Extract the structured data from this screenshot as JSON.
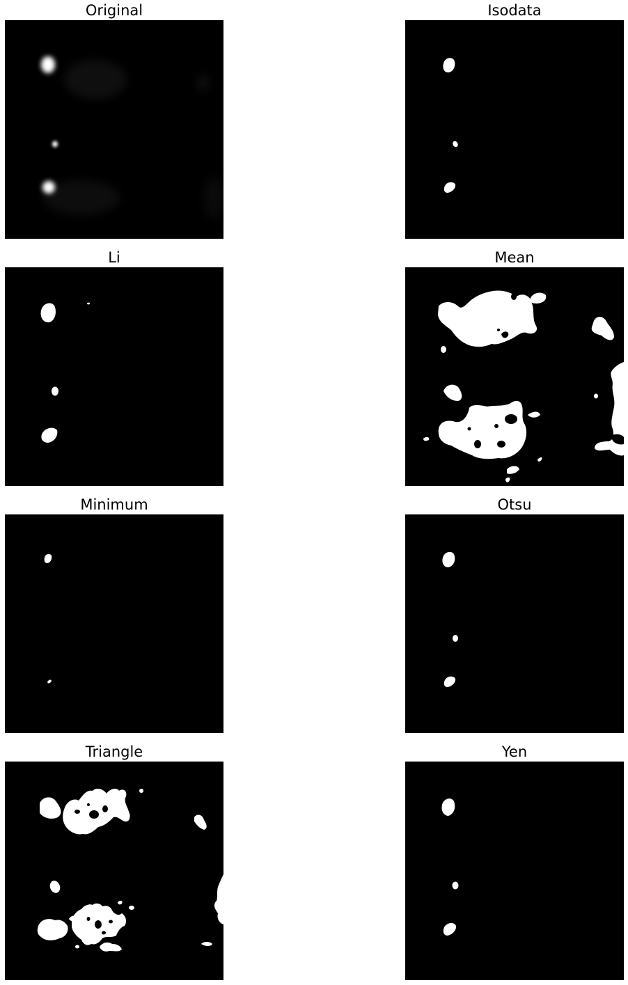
{
  "panels": [
    {
      "title": "Original"
    },
    {
      "title": "Isodata"
    },
    {
      "title": "Li"
    },
    {
      "title": "Mean"
    },
    {
      "title": "Minimum"
    },
    {
      "title": "Otsu"
    },
    {
      "title": "Triangle"
    },
    {
      "title": "Yen"
    }
  ],
  "colors": {
    "background": "#ffffff",
    "image_background": "#000000",
    "foreground": "#ffffff"
  }
}
